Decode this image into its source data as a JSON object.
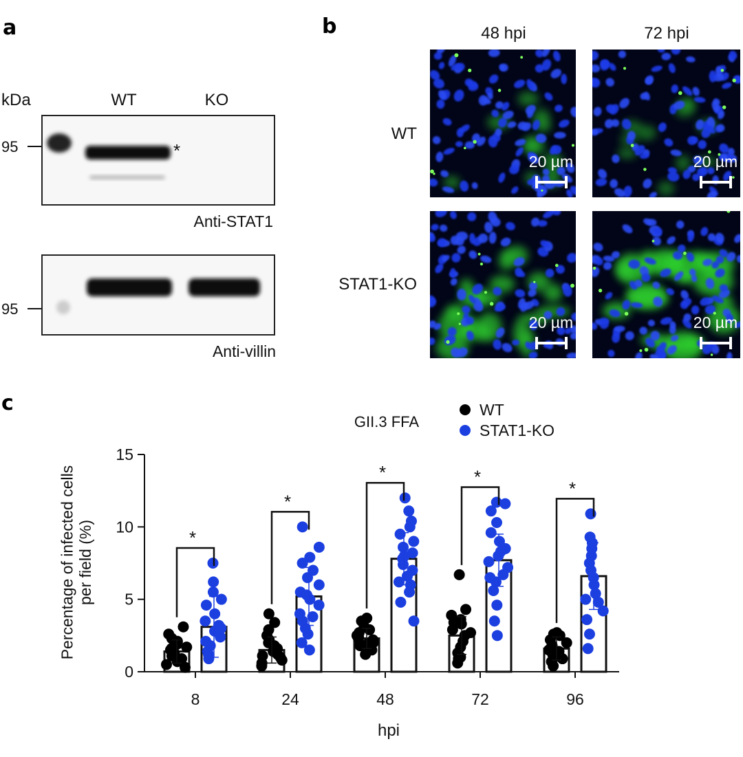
{
  "panel_a": {
    "letter": "a",
    "kda_label": "kDa",
    "lane_wt": "WT",
    "lane_ko": "KO",
    "marker_top": "95",
    "marker_bottom": "95",
    "asterisk": "*",
    "blot_top_label": "Anti-STAT1",
    "blot_bottom_label": "Anti-villin"
  },
  "panel_b": {
    "letter": "b",
    "col_48": "48 hpi",
    "col_72": "72 hpi",
    "row_wt": "WT",
    "row_ko": "STAT1-KO",
    "scale_bar_label": "20 µm"
  },
  "panel_c": {
    "letter": "c"
  },
  "chart_data": {
    "type": "bar",
    "title": "GII.3 FFA",
    "xlabel": "hpi",
    "ylabel": "Percentage of infected cells per field (%)",
    "categories": [
      "8",
      "24",
      "48",
      "72",
      "96"
    ],
    "ylim": [
      0,
      15
    ],
    "yticks": [
      0,
      5,
      10,
      15
    ],
    "legend_position": "top-right",
    "significance_marker": "*",
    "series": [
      {
        "name": "WT",
        "color": "#000000",
        "values": [
          1.4,
          1.5,
          2.3,
          2.5,
          1.6
        ],
        "error": [
          0.8,
          0.9,
          0.7,
          1.3,
          0.8
        ],
        "points": [
          [
            0.5,
            0.7,
            0.9,
            1.1,
            1.3,
            1.5,
            1.7,
            1.9,
            2.1,
            2.3,
            2.6,
            3.1,
            0.3,
            1.0,
            1.6
          ],
          [
            0.4,
            0.6,
            0.8,
            1.0,
            1.2,
            1.4,
            1.6,
            1.8,
            2.0,
            2.2,
            2.5,
            2.9,
            3.4,
            4.0,
            1.1
          ],
          [
            1.2,
            1.5,
            1.8,
            2.0,
            2.2,
            2.3,
            2.5,
            2.7,
            2.9,
            3.1,
            3.5,
            3.7,
            1.9,
            2.4
          ],
          [
            0.6,
            0.9,
            1.3,
            1.7,
            2.1,
            2.5,
            2.9,
            3.3,
            3.6,
            3.9,
            4.3,
            6.7,
            1.0,
            2.7,
            3.4
          ],
          [
            0.4,
            0.7,
            1.0,
            1.2,
            1.4,
            1.6,
            1.8,
            2.0,
            2.2,
            2.5,
            2.7,
            0.9,
            1.5,
            2.6
          ]
        ]
      },
      {
        "name": "STAT1-KO",
        "color": "#1c3fe0",
        "values": [
          3.1,
          5.2,
          7.8,
          7.7,
          6.6
        ],
        "error": [
          2.1,
          2.0,
          1.8,
          1.8,
          2.3
        ],
        "points": [
          [
            0.9,
            1.4,
            1.8,
            2.1,
            2.4,
            2.8,
            3.0,
            3.2,
            3.5,
            4.0,
            4.6,
            5.0,
            5.5,
            6.2,
            7.5,
            1.2
          ],
          [
            1.5,
            2.0,
            2.6,
            3.0,
            3.5,
            4.0,
            4.6,
            5.0,
            5.5,
            6.0,
            6.5,
            7.0,
            7.5,
            7.9,
            8.6,
            10.0,
            3.8,
            5.3
          ],
          [
            3.5,
            4.8,
            5.5,
            6.2,
            6.6,
            7.0,
            7.4,
            7.8,
            8.2,
            8.6,
            9.0,
            9.5,
            10.0,
            10.4,
            11.1,
            12.0,
            6.0,
            8.0
          ],
          [
            2.5,
            3.5,
            4.6,
            5.6,
            6.2,
            6.7,
            7.2,
            7.6,
            8.0,
            8.5,
            9.0,
            9.6,
            10.3,
            11.1,
            11.6,
            11.7,
            6.5,
            8.3
          ],
          [
            1.6,
            2.6,
            3.6,
            4.2,
            4.8,
            5.4,
            6.0,
            6.5,
            7.0,
            7.5,
            8.0,
            8.5,
            8.9,
            9.3,
            10.9,
            5.0
          ]
        ]
      }
    ]
  }
}
